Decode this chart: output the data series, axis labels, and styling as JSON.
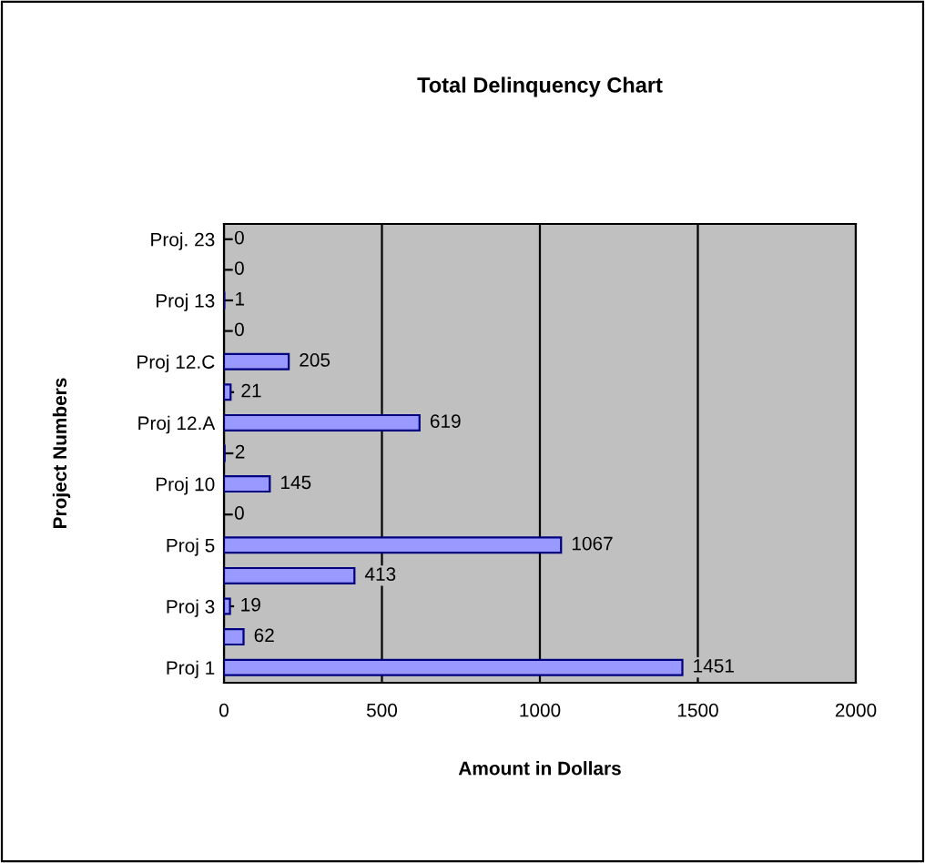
{
  "chart_data": {
    "type": "bar",
    "orientation": "horizontal",
    "title": "Total Delinquency Chart",
    "xlabel": "Amount in Dollars",
    "ylabel": "Project Numbers",
    "categories": [
      "Proj. 23",
      null,
      "Proj 13",
      null,
      "Proj 12.C",
      null,
      "Proj 12.A",
      null,
      "Proj 10",
      null,
      "Proj 5",
      null,
      "Proj 3",
      null,
      "Proj 1"
    ],
    "values": [
      0,
      0,
      1,
      0,
      205,
      21,
      619,
      2,
      145,
      0,
      1067,
      413,
      19,
      62,
      1451
    ],
    "color": "#9999ff",
    "xlim": [
      0,
      2000
    ],
    "xticks": [
      0,
      500,
      1000,
      1500,
      2000
    ],
    "grid": "x",
    "data_labels": true
  }
}
